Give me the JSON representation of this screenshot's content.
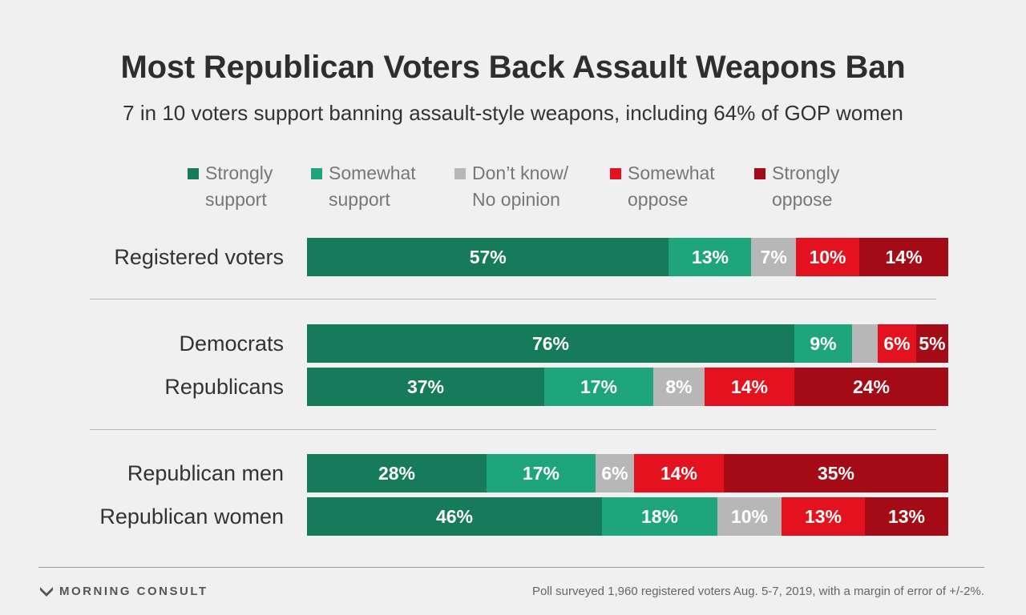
{
  "title": "Most Republican Voters Back Assault Weapons Ban",
  "subtitle": "7 in 10 voters support banning assault-style weapons, including 64% of GOP women",
  "footer": {
    "brand": "MORNING CONSULT",
    "note": "Poll surveyed 1,960 registered voters Aug. 5-7, 2019, with a margin of error of +/-2%."
  },
  "chart_data": {
    "type": "bar",
    "orientation": "horizontal",
    "stacked": true,
    "categories": [
      "Registered voters",
      "Democrats",
      "Republicans",
      "Republican men",
      "Republican women"
    ],
    "legend_placement": "top",
    "series": [
      {
        "name": "Strongly support",
        "legend_label": "Strongly\nsupport",
        "color": "#157b5a",
        "values": [
          57,
          76,
          37,
          28,
          46
        ],
        "labels": [
          "57%",
          "76%",
          "37%",
          "28%",
          "46%"
        ]
      },
      {
        "name": "Somewhat support",
        "legend_label": "Somewhat\nsupport",
        "color": "#1fa57b",
        "values": [
          13,
          9,
          17,
          17,
          18
        ],
        "labels": [
          "13%",
          "9%",
          "17%",
          "17%",
          "18%"
        ]
      },
      {
        "name": "Don't know/ No opinion",
        "legend_label": "Don’t know/\nNo opinion",
        "color": "#b7b7b7",
        "values": [
          7,
          4,
          8,
          6,
          10
        ],
        "labels": [
          "7%",
          "",
          "8%",
          "6%",
          "10%"
        ]
      },
      {
        "name": "Somewhat oppose",
        "legend_label": "Somewhat\noppose",
        "color": "#e3121e",
        "values": [
          10,
          6,
          14,
          14,
          13
        ],
        "labels": [
          "10%",
          "6%",
          "14%",
          "14%",
          "13%"
        ]
      },
      {
        "name": "Strongly oppose",
        "legend_label": "Strongly\noppose",
        "color": "#a50b16",
        "values": [
          14,
          5,
          24,
          35,
          13
        ],
        "labels": [
          "14%",
          "5%",
          "24%",
          "35%",
          "13%"
        ]
      }
    ],
    "xlim": [
      0,
      100
    ],
    "grid": false
  }
}
